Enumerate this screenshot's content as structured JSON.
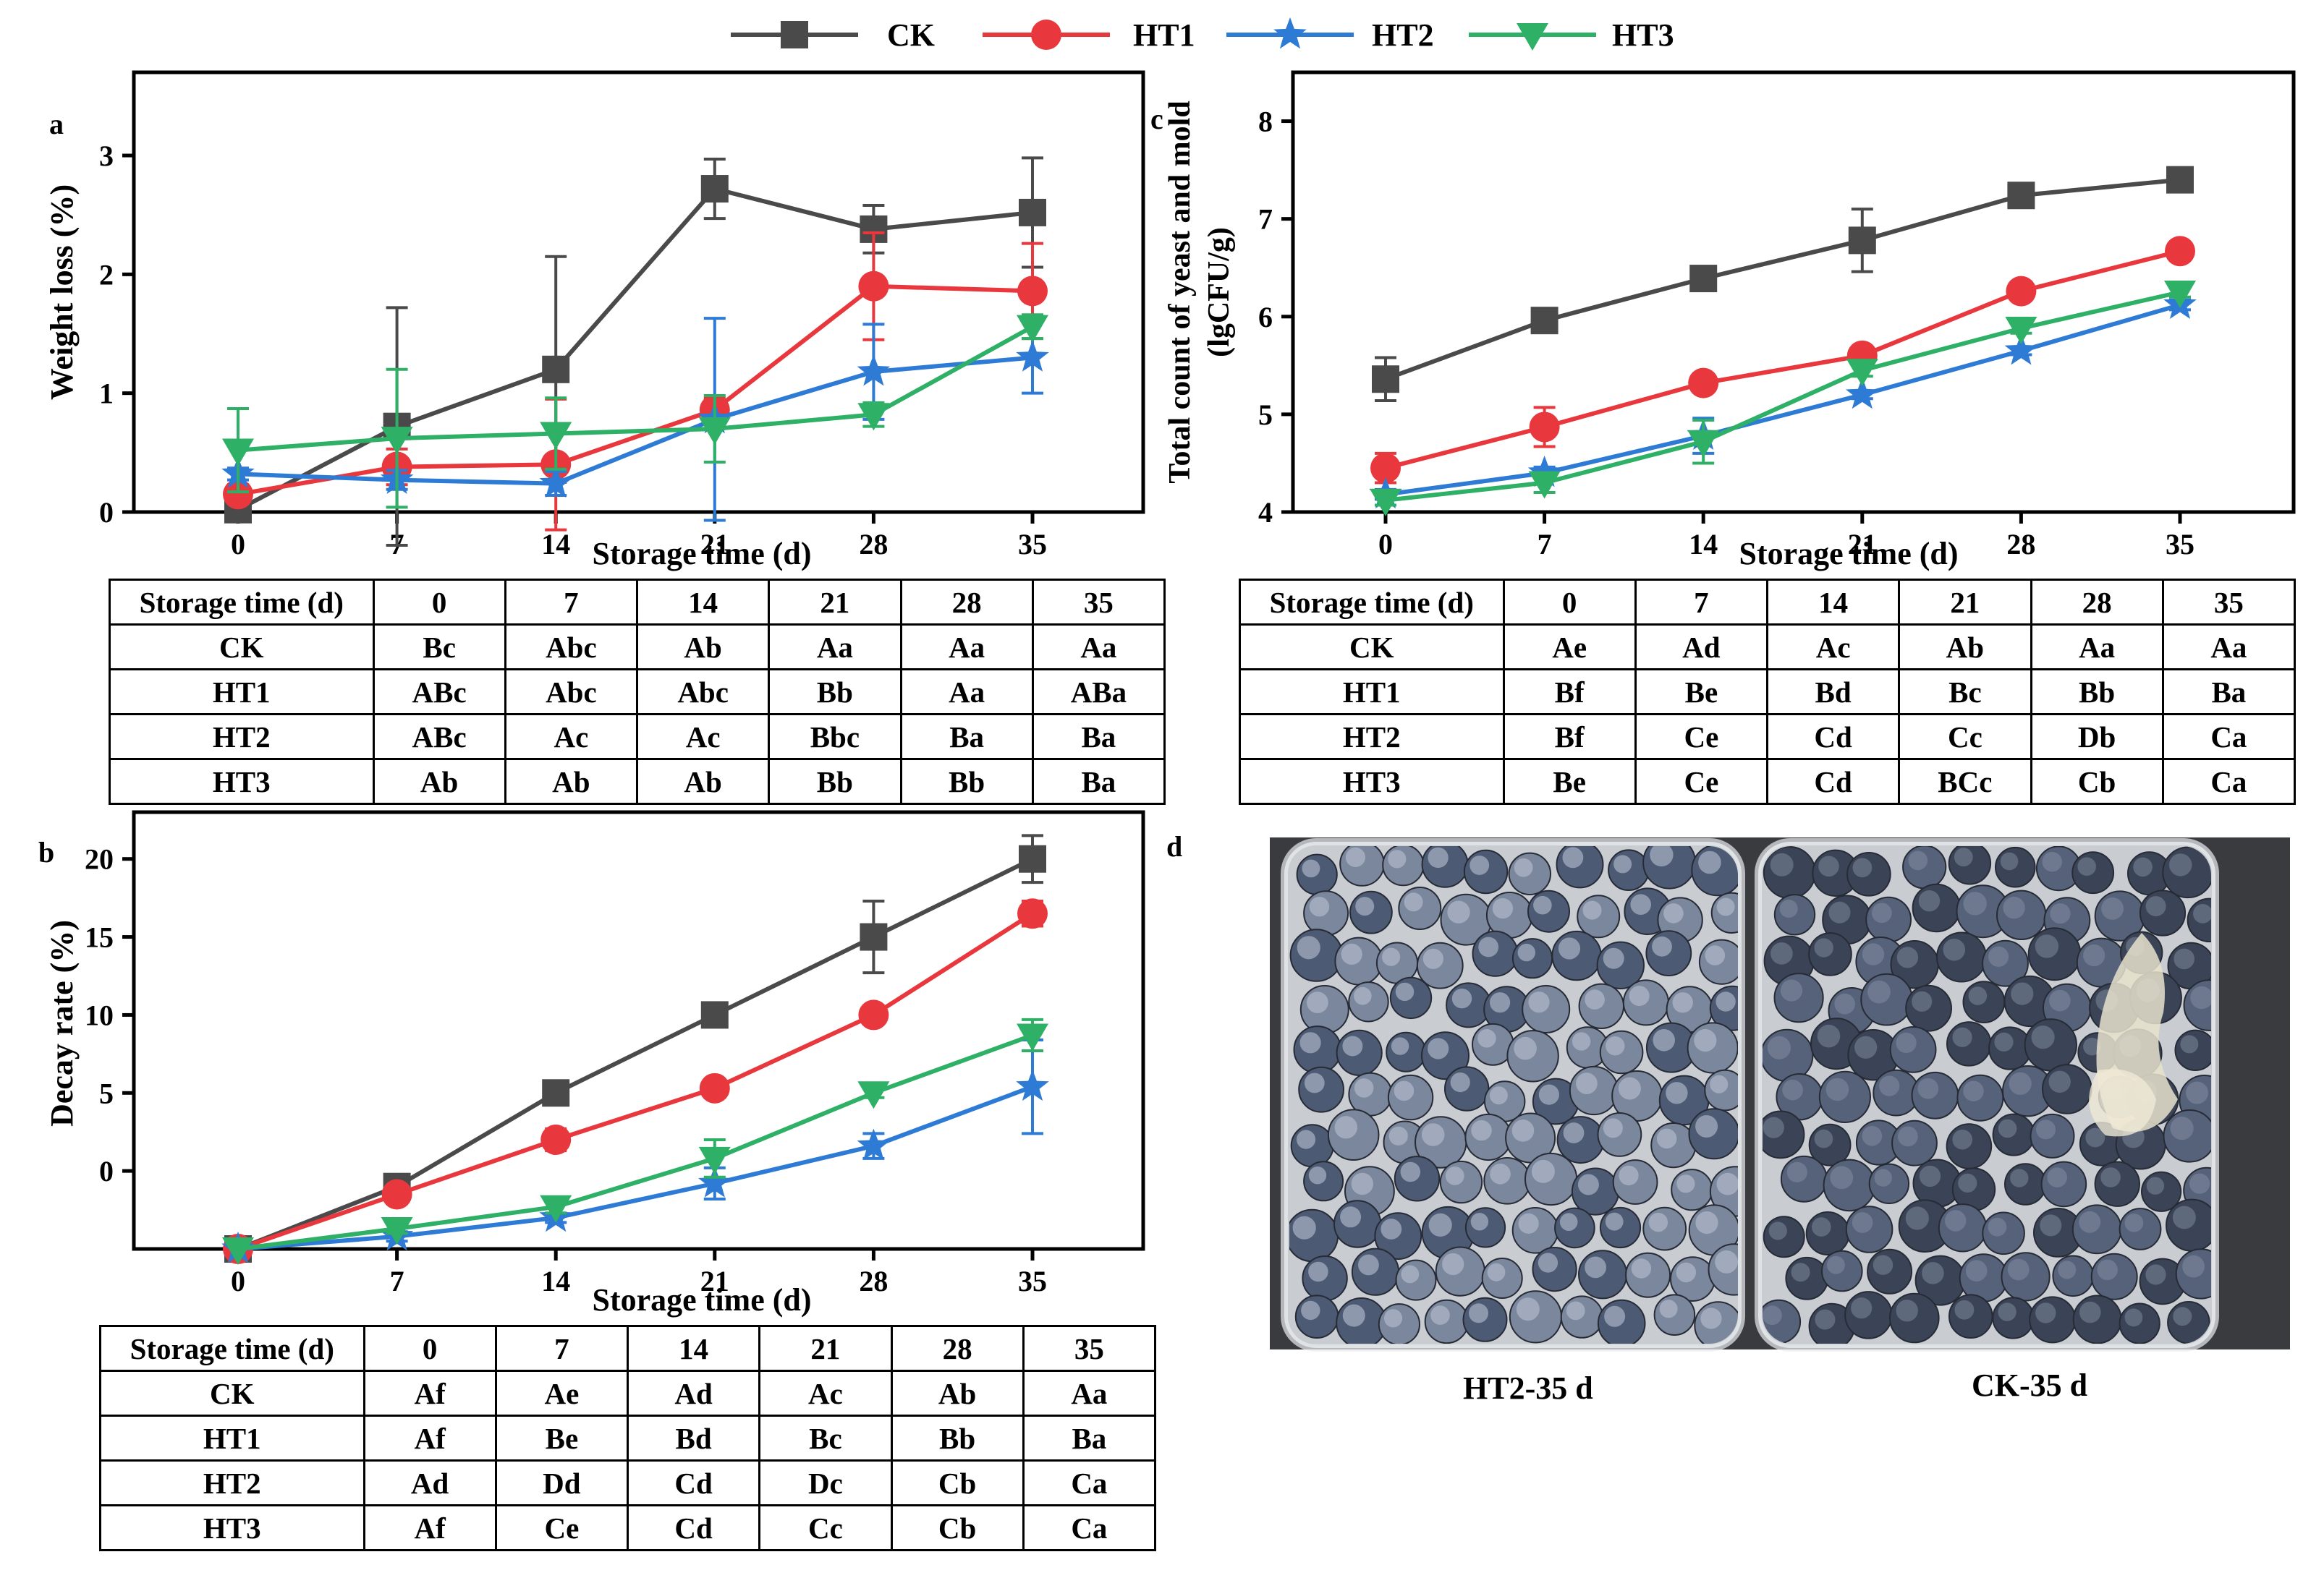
{
  "legend": [
    {
      "name": "CK",
      "color": "#4a4a4a",
      "marker": "square"
    },
    {
      "name": "HT1",
      "color": "#e8383d",
      "marker": "circle"
    },
    {
      "name": "HT2",
      "color": "#2e7bd6",
      "marker": "star"
    },
    {
      "name": "HT3",
      "color": "#2eb066",
      "marker": "triangle-down"
    }
  ],
  "chart_data": [
    {
      "id": "a",
      "type": "line",
      "panel_label": "a",
      "xlabel": "Storage time (d)",
      "ylabel": "Weight loss (%)",
      "x": [
        0,
        7,
        14,
        21,
        28,
        35
      ],
      "xticks": [
        "0",
        "7",
        "14",
        "21",
        "28",
        "35"
      ],
      "ylim": [
        0,
        3.7
      ],
      "yticks": [
        0,
        1,
        2,
        3
      ],
      "series": [
        {
          "name": "CK",
          "values": [
            0.02,
            0.72,
            1.2,
            2.72,
            2.38,
            2.52
          ],
          "errors": [
            0.02,
            1.0,
            0.95,
            0.25,
            0.2,
            0.46
          ]
        },
        {
          "name": "HT1",
          "values": [
            0.15,
            0.38,
            0.4,
            0.86,
            1.9,
            1.86
          ],
          "errors": [
            0.08,
            0.15,
            0.55,
            0.1,
            0.45,
            0.4
          ]
        },
        {
          "name": "HT2",
          "values": [
            0.32,
            0.27,
            0.24,
            0.78,
            1.18,
            1.3
          ],
          "errors": [
            0.05,
            0.08,
            0.1,
            0.85,
            0.4,
            0.3
          ]
        },
        {
          "name": "HT3",
          "values": [
            0.52,
            0.62,
            0.66,
            0.7,
            0.82,
            1.56
          ],
          "errors": [
            0.35,
            0.58,
            0.3,
            0.28,
            0.1,
            0.1
          ]
        }
      ]
    },
    {
      "id": "b",
      "type": "line",
      "panel_label": "b",
      "xlabel": "Storage time (d)",
      "ylabel": "Decay rate (%)",
      "x": [
        0,
        7,
        14,
        21,
        28,
        35
      ],
      "xticks": [
        "0",
        "7",
        "14",
        "21",
        "28",
        "35"
      ],
      "ylim": [
        -5,
        23
      ],
      "yticks": [
        0,
        5,
        10,
        15,
        20
      ],
      "series": [
        {
          "name": "CK",
          "values": [
            -5,
            -1,
            5,
            10,
            15,
            20
          ],
          "errors": [
            0,
            0.3,
            0.3,
            0.3,
            2.3,
            1.5
          ]
        },
        {
          "name": "HT1",
          "values": [
            -5,
            -1.5,
            2,
            5.3,
            10,
            16.5
          ],
          "errors": [
            0,
            0.4,
            0.7,
            0.4,
            0.4,
            0.8
          ]
        },
        {
          "name": "HT2",
          "values": [
            -5,
            -4.2,
            -3,
            -0.8,
            1.6,
            5.4
          ],
          "errors": [
            0,
            0.3,
            0.3,
            1.0,
            0.8,
            3.0
          ]
        },
        {
          "name": "HT3",
          "values": [
            -5,
            -3.7,
            -2.3,
            0.8,
            5,
            8.7
          ],
          "errors": [
            0,
            0.3,
            0.4,
            1.2,
            0.3,
            1.0
          ]
        }
      ]
    },
    {
      "id": "c",
      "type": "line",
      "panel_label": "c",
      "xlabel": "Storage time (d)",
      "ylabel": "Total count of yeast and mold",
      "ylabel2": "(lgCFU/g)",
      "x": [
        0,
        7,
        14,
        21,
        28,
        35
      ],
      "xticks": [
        "0",
        "7",
        "14",
        "21",
        "28",
        "35"
      ],
      "ylim": [
        4,
        8.5
      ],
      "yticks": [
        4,
        5,
        6,
        7,
        8
      ],
      "series": [
        {
          "name": "CK",
          "values": [
            5.36,
            5.96,
            6.39,
            6.78,
            7.24,
            7.4
          ],
          "errors": [
            0.22,
            0.12,
            0.06,
            0.32,
            0.05,
            0.12
          ]
        },
        {
          "name": "HT1",
          "values": [
            4.45,
            4.87,
            5.32,
            5.6,
            6.26,
            6.67
          ],
          "errors": [
            0.15,
            0.2,
            0.05,
            0.05,
            0.06,
            0.05
          ]
        },
        {
          "name": "HT2",
          "values": [
            4.18,
            4.4,
            4.78,
            5.2,
            5.65,
            6.12
          ],
          "errors": [
            0.05,
            0.06,
            0.18,
            0.04,
            0.04,
            0.05
          ]
        },
        {
          "name": "HT3",
          "values": [
            4.12,
            4.3,
            4.72,
            5.45,
            5.88,
            6.25
          ],
          "errors": [
            0.05,
            0.1,
            0.22,
            0.06,
            0.05,
            0.05
          ]
        }
      ]
    }
  ],
  "tables": {
    "a": {
      "header": [
        "Storage time (d)",
        "0",
        "7",
        "14",
        "21",
        "28",
        "35"
      ],
      "rows": [
        [
          "CK",
          "Bc",
          "Abc",
          "Ab",
          "Aa",
          "Aa",
          "Aa"
        ],
        [
          "HT1",
          "ABc",
          "Abc",
          "Abc",
          "Bb",
          "Aa",
          "ABa"
        ],
        [
          "HT2",
          "ABc",
          "Ac",
          "Ac",
          "Bbc",
          "Ba",
          "Ba"
        ],
        [
          "HT3",
          "Ab",
          "Ab",
          "Ab",
          "Bb",
          "Bb",
          "Ba"
        ]
      ]
    },
    "b": {
      "header": [
        "Storage time (d)",
        "0",
        "7",
        "14",
        "21",
        "28",
        "35"
      ],
      "rows": [
        [
          "CK",
          "Af",
          "Ae",
          "Ad",
          "Ac",
          "Ab",
          "Aa"
        ],
        [
          "HT1",
          "Af",
          "Be",
          "Bd",
          "Bc",
          "Bb",
          "Ba"
        ],
        [
          "HT2",
          "Ad",
          "Dd",
          "Cd",
          "Dc",
          "Cb",
          "Ca"
        ],
        [
          "HT3",
          "Af",
          "Ce",
          "Cd",
          "Cc",
          "Cb",
          "Ca"
        ]
      ]
    },
    "c": {
      "header": [
        "Storage time (d)",
        "0",
        "7",
        "14",
        "21",
        "28",
        "35"
      ],
      "rows": [
        [
          "CK",
          "Ae",
          "Ad",
          "Ac",
          "Ab",
          "Aa",
          "Aa"
        ],
        [
          "HT1",
          "Bf",
          "Be",
          "Bd",
          "Bc",
          "Bb",
          "Ba"
        ],
        [
          "HT2",
          "Bf",
          "Ce",
          "Cd",
          "Cc",
          "Db",
          "Ca"
        ],
        [
          "HT3",
          "Be",
          "Ce",
          "Cd",
          "BCc",
          "Cb",
          "Ca"
        ]
      ]
    }
  },
  "photo": {
    "panel_label": "d",
    "left_caption": "HT2-35 d",
    "right_caption": "CK-35 d"
  }
}
